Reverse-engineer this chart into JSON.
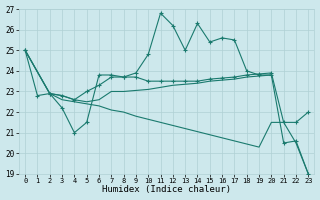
{
  "xlabel": "Humidex (Indice chaleur)",
  "xlim": [
    -0.5,
    23.5
  ],
  "ylim": [
    19,
    27
  ],
  "yticks": [
    19,
    20,
    21,
    22,
    23,
    24,
    25,
    26,
    27
  ],
  "xticks": [
    0,
    1,
    2,
    3,
    4,
    5,
    6,
    7,
    8,
    9,
    10,
    11,
    12,
    13,
    14,
    15,
    16,
    17,
    18,
    19,
    20,
    21,
    22,
    23
  ],
  "bg_color": "#cde8ec",
  "line_color": "#1a7a6e",
  "grid_color": "#b0d0d5",
  "line1_x": [
    0,
    1,
    2,
    3,
    4,
    5,
    6,
    7,
    8,
    9,
    10,
    11,
    12,
    13,
    14,
    15,
    16,
    17,
    18,
    19,
    20,
    21,
    22,
    23
  ],
  "line1_y": [
    25,
    22.8,
    22.9,
    22.2,
    21.0,
    21.5,
    23.8,
    23.8,
    23.7,
    23.9,
    24.8,
    26.8,
    26.2,
    25.0,
    26.3,
    25.4,
    25.6,
    25.5,
    24.0,
    23.8,
    23.8,
    20.5,
    20.6,
    19.0
  ],
  "line2_x": [
    0,
    2,
    3,
    4,
    5,
    6,
    7,
    8,
    9,
    10,
    11,
    12,
    13,
    14,
    15,
    16,
    17,
    18,
    19,
    20,
    21,
    22,
    23
  ],
  "line2_y": [
    25,
    22.9,
    22.8,
    22.6,
    23.0,
    23.3,
    23.7,
    23.7,
    23.7,
    23.5,
    23.5,
    23.5,
    23.5,
    23.5,
    23.6,
    23.65,
    23.7,
    23.8,
    23.85,
    23.9,
    21.5,
    21.5,
    22.0
  ],
  "line3_x": [
    0,
    2,
    3,
    4,
    5,
    6,
    7,
    8,
    9,
    10,
    11,
    12,
    13,
    14,
    15,
    16,
    17,
    18,
    19,
    20
  ],
  "line3_y": [
    25,
    22.9,
    22.8,
    22.6,
    22.5,
    22.6,
    23.0,
    23.0,
    23.05,
    23.1,
    23.2,
    23.3,
    23.35,
    23.4,
    23.5,
    23.55,
    23.6,
    23.7,
    23.75,
    23.8
  ],
  "line4_x": [
    0,
    2,
    3,
    4,
    5,
    6,
    7,
    8,
    9,
    10,
    11,
    12,
    13,
    14,
    15,
    16,
    17,
    18,
    19,
    20,
    21,
    22,
    23
  ],
  "line4_y": [
    25,
    22.9,
    22.6,
    22.5,
    22.4,
    22.3,
    22.1,
    22.0,
    21.8,
    21.65,
    21.5,
    21.35,
    21.2,
    21.05,
    20.9,
    20.75,
    20.6,
    20.45,
    20.3,
    21.5,
    21.5,
    20.5,
    19.0
  ]
}
